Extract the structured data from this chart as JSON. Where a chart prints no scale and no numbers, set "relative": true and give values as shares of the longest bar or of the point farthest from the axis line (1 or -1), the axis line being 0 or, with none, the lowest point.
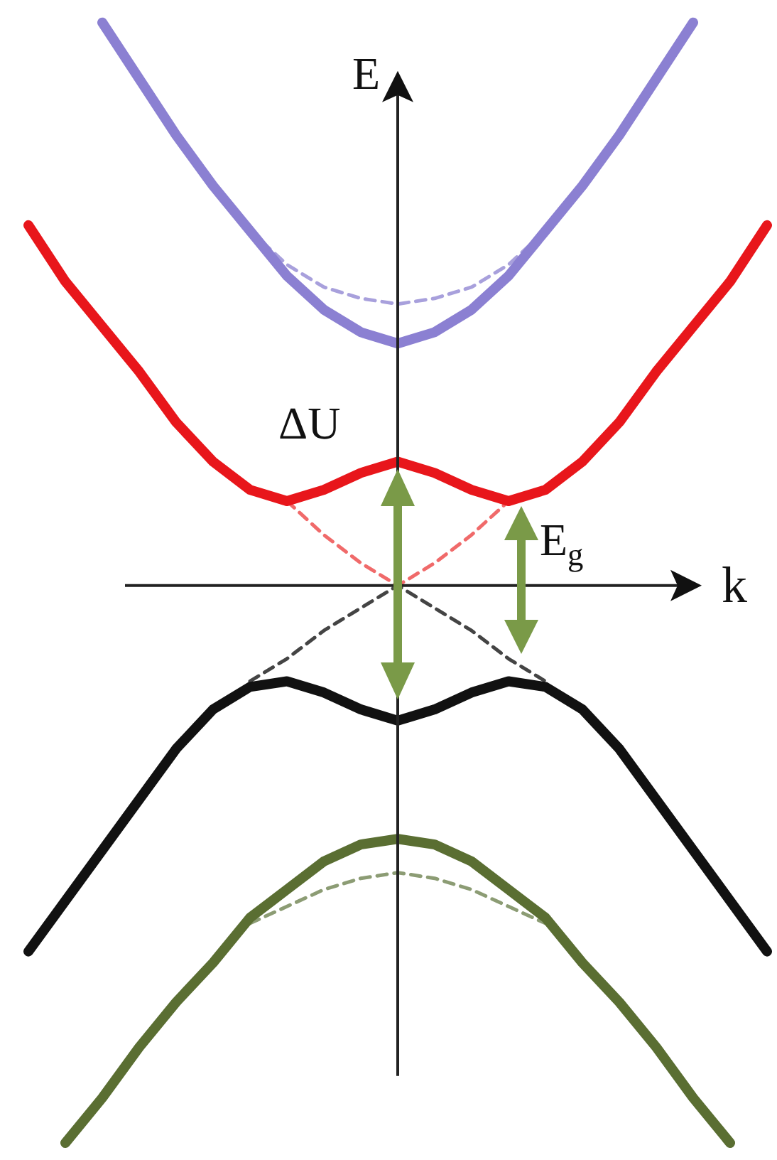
{
  "chart_data": {
    "type": "line",
    "relative": true,
    "xlabel": "k",
    "ylabel": "E",
    "annotations": [
      "ΔU",
      "E$_{g}$"
    ],
    "grid": false,
    "legend": false,
    "tick_labels": false,
    "marker": "none",
    "categories": [
      null,
      null,
      null,
      null,
      null,
      null,
      null,
      null,
      null,
      null,
      null,
      null,
      null,
      null,
      null,
      null,
      null,
      null,
      null,
      null,
      null
    ],
    "series": [
      {
        "color": "#8b80d2",
        "values": [
          null,
          null,
          1,
          0.9,
          0.8,
          0.71,
          0.63,
          0.55,
          0.49,
          0.45,
          0.43,
          0.45,
          0.49,
          0.55,
          0.63,
          0.71,
          0.8,
          0.9,
          1,
          null,
          null
        ]
      },
      {
        "color": "#a8a0dc",
        "line_style": "dashed",
        "values": [
          null,
          null,
          null,
          null,
          null,
          null,
          0.63,
          0.57,
          0.53,
          0.51,
          0.5,
          0.51,
          0.53,
          0.57,
          0.63,
          null,
          null,
          null,
          null,
          null,
          null
        ]
      },
      {
        "color": "#e8161b",
        "values": [
          0.64,
          0.54,
          0.46,
          0.38,
          0.29,
          0.22,
          0.17,
          0.15,
          0.17,
          0.2,
          0.22,
          0.2,
          0.17,
          0.15,
          0.17,
          0.22,
          0.29,
          0.38,
          0.46,
          0.54,
          0.64
        ]
      },
      {
        "color": "#f06a6a",
        "line_style": "dashed",
        "values": [
          null,
          null,
          null,
          null,
          null,
          null,
          null,
          0.15,
          0.09,
          0.04,
          0,
          0.04,
          0.09,
          0.15,
          null,
          null,
          null,
          null,
          null,
          null,
          null
        ]
      },
      {
        "color": "#111111",
        "values": [
          -0.65,
          -0.56,
          -0.47,
          -0.38,
          -0.29,
          -0.22,
          -0.18,
          -0.17,
          -0.19,
          -0.22,
          -0.24,
          -0.22,
          -0.19,
          -0.17,
          -0.18,
          -0.22,
          -0.29,
          -0.38,
          -0.47,
          -0.56,
          -0.65
        ]
      },
      {
        "color": "#444444",
        "line_style": "dashed",
        "values": [
          null,
          null,
          null,
          null,
          null,
          null,
          -0.17,
          -0.13,
          -0.08,
          -0.04,
          0,
          -0.04,
          -0.08,
          -0.13,
          -0.17,
          null,
          null,
          null,
          null,
          null,
          null
        ]
      },
      {
        "color": "#5a6e32",
        "values": [
          null,
          -0.99,
          -0.91,
          -0.82,
          -0.74,
          -0.67,
          -0.59,
          -0.54,
          -0.49,
          -0.46,
          -0.45,
          -0.46,
          -0.49,
          -0.54,
          -0.59,
          -0.67,
          -0.74,
          -0.82,
          -0.91,
          -0.99,
          null
        ]
      },
      {
        "color": "#8c9c74",
        "line_style": "dashed",
        "values": [
          null,
          null,
          null,
          null,
          null,
          null,
          -0.6,
          -0.57,
          -0.54,
          -0.52,
          -0.51,
          -0.52,
          -0.54,
          -0.57,
          -0.6,
          null,
          null,
          null,
          null,
          null,
          null
        ]
      }
    ]
  }
}
